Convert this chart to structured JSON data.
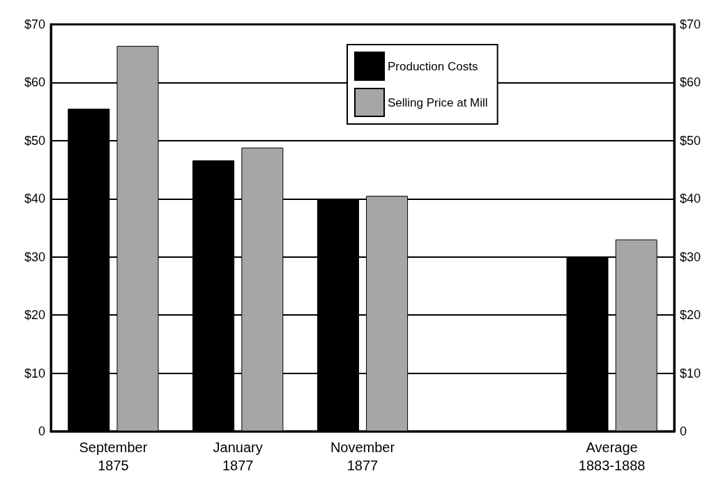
{
  "chart_data": {
    "type": "bar",
    "categories": [
      "September\n1875",
      "January\n1877",
      "November\n1877",
      null,
      "Average\n1883-1888"
    ],
    "series": [
      {
        "name": "Production Costs",
        "color": "#000000",
        "values": [
          55.5,
          46.6,
          40,
          null,
          30
        ]
      },
      {
        "name": "Selling Price at Mill",
        "color": "#a6a6a6",
        "values": [
          66.3,
          48.8,
          40.5,
          null,
          33
        ]
      }
    ],
    "ylim": [
      0,
      70
    ],
    "yticks": [
      {
        "value": 0,
        "label": "0"
      },
      {
        "value": 10,
        "label": "$10"
      },
      {
        "value": 20,
        "label": "$20"
      },
      {
        "value": 30,
        "label": "$30"
      },
      {
        "value": 40,
        "label": "$40"
      },
      {
        "value": 50,
        "label": "$50"
      },
      {
        "value": 60,
        "label": "$60"
      },
      {
        "value": 70,
        "label": "$70"
      }
    ],
    "y2lim": [
      0,
      70
    ],
    "y2ticks": [
      {
        "value": 0,
        "label": "0"
      },
      {
        "value": 10,
        "label": "$10"
      },
      {
        "value": 20,
        "label": "$20"
      },
      {
        "value": 30,
        "label": "$30"
      },
      {
        "value": 40,
        "label": "$40"
      },
      {
        "value": 50,
        "label": "$50"
      },
      {
        "value": 60,
        "label": "$60"
      },
      {
        "value": 70,
        "label": "$70"
      }
    ],
    "grid": "y",
    "legend": "top"
  }
}
